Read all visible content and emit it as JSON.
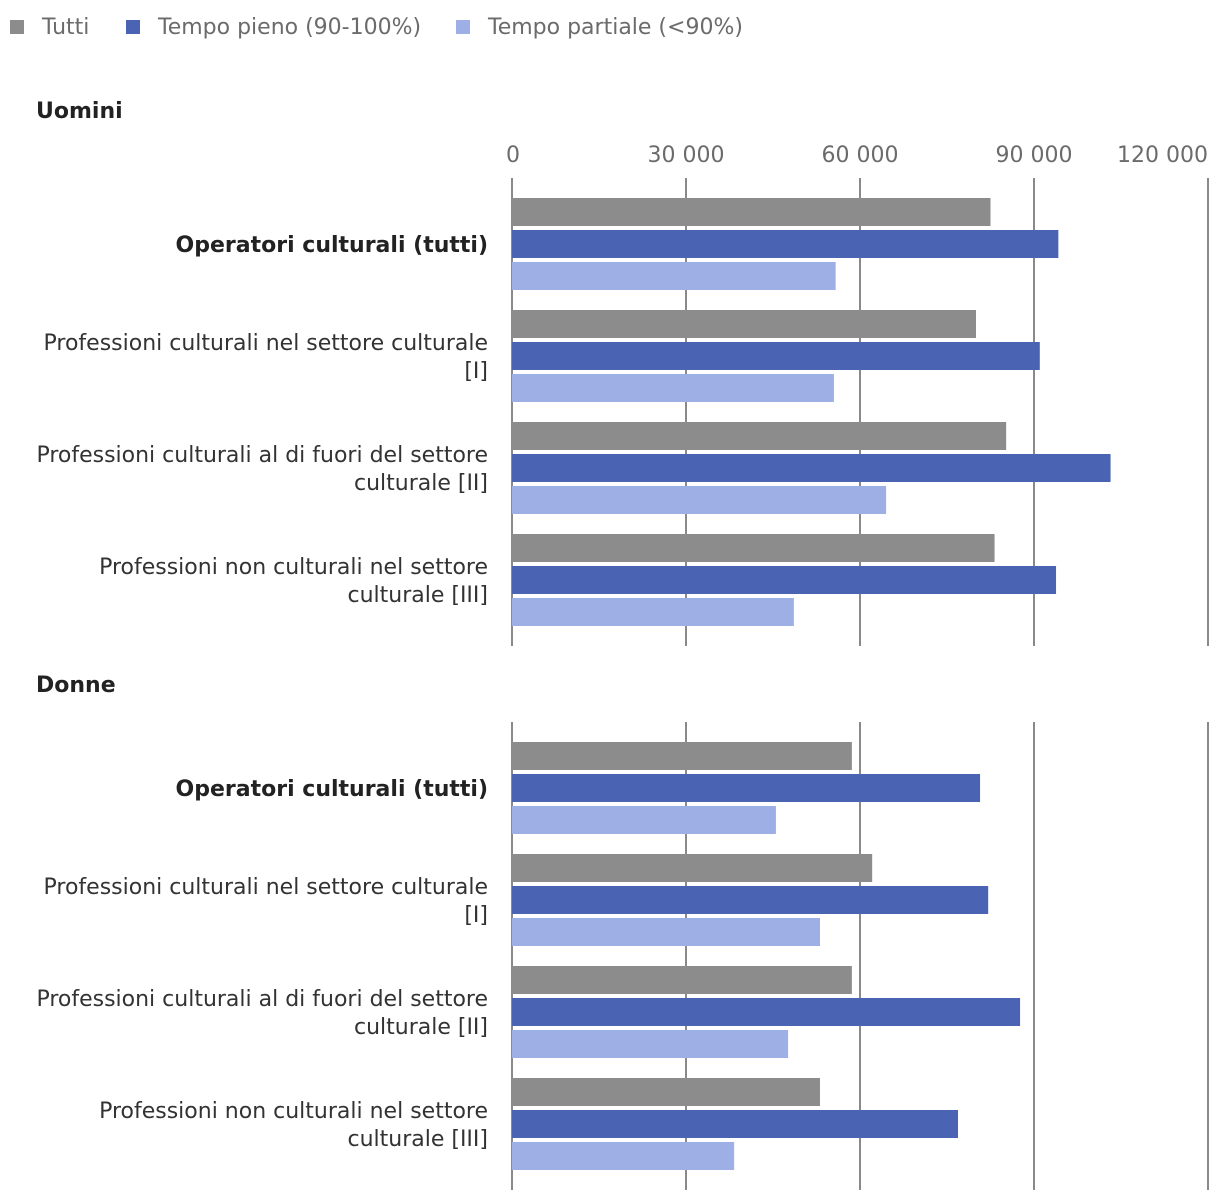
{
  "chart_data": {
    "type": "bar",
    "orientation": "horizontal",
    "grid": true,
    "legend_position": "top-left",
    "xlim": [
      0,
      120000
    ],
    "ticks": [
      0,
      30000,
      60000,
      90000,
      120000
    ],
    "tick_labels": [
      "0",
      "30 000",
      "60 000",
      "90 000",
      "120 000"
    ],
    "series": [
      {
        "name": "Tutti",
        "color": "#8c8c8c"
      },
      {
        "name": "Tempo pieno (90-100%)",
        "color": "#4a63b3"
      },
      {
        "name": "Tempo partiale (<90%)",
        "color": "#9dafe5"
      }
    ],
    "panels": [
      {
        "title": "Uomini",
        "categories": [
          {
            "lines": [
              "Operatori culturali (tutti)"
            ],
            "bold": true,
            "values": [
              82500,
              94200,
              55800
            ]
          },
          {
            "lines": [
              "Professioni culturali nel settore culturale",
              "[I]"
            ],
            "bold": false,
            "values": [
              80000,
              91000,
              55500
            ]
          },
          {
            "lines": [
              "Professioni culturali al di fuori del settore",
              "culturale [II]"
            ],
            "bold": false,
            "values": [
              85200,
              103200,
              64500
            ]
          },
          {
            "lines": [
              "Professioni non culturali nel settore",
              "culturale [III]"
            ],
            "bold": false,
            "values": [
              83200,
              93800,
              48600
            ]
          }
        ]
      },
      {
        "title": "Donne",
        "categories": [
          {
            "lines": [
              "Operatori culturali (tutti)"
            ],
            "bold": true,
            "values": [
              58600,
              80700,
              45500
            ]
          },
          {
            "lines": [
              "Professioni culturali nel settore culturale",
              "[I]"
            ],
            "bold": false,
            "values": [
              62100,
              82100,
              53100
            ]
          },
          {
            "lines": [
              "Professioni culturali al di fuori del settore",
              "culturale [II]"
            ],
            "bold": false,
            "values": [
              58600,
              87600,
              47600
            ]
          },
          {
            "lines": [
              "Professioni non culturali nel settore",
              "culturale [III]"
            ],
            "bold": false,
            "values": [
              53100,
              76900,
              38300
            ]
          }
        ]
      }
    ]
  }
}
